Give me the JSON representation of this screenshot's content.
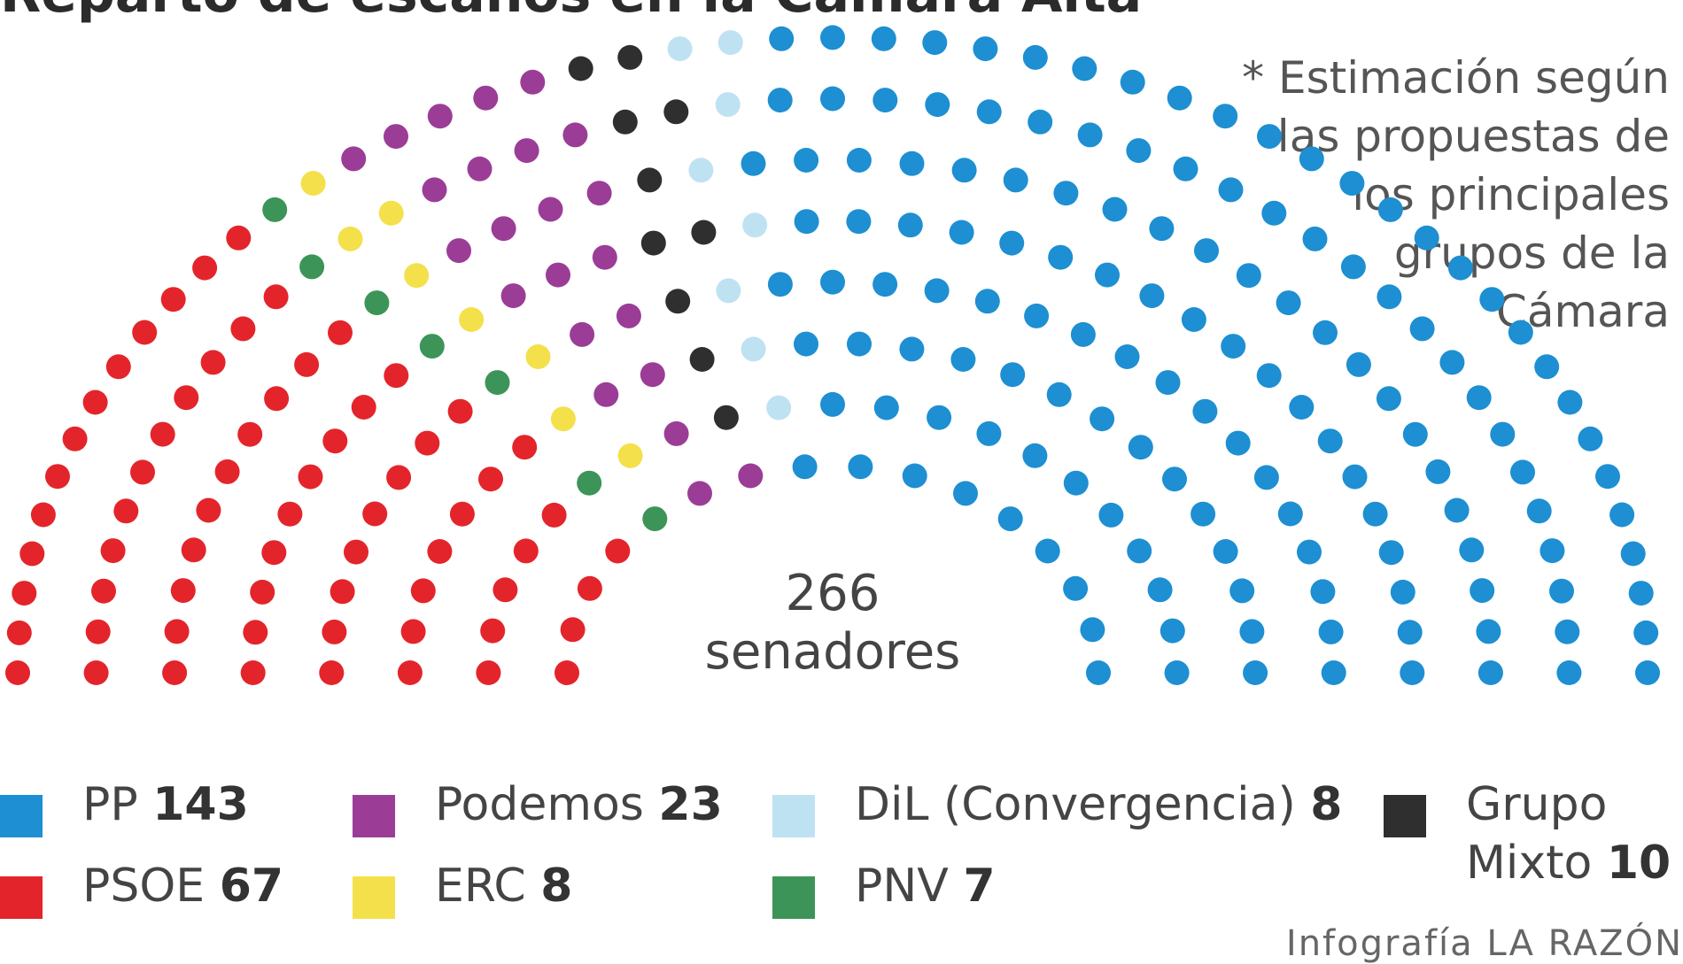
{
  "title": "Reparto de escaños en la Cámara Alta*",
  "footnote_lines": [
    "* Estimación según",
    "las propuestas de",
    "los principales",
    "grupos de la",
    "Cámara"
  ],
  "total": {
    "number": "266",
    "label": "senadores"
  },
  "credit": "Infografía LA RAZÓN",
  "legend": [
    {
      "name": "PP",
      "seats": "143",
      "color": "#1d8fd2"
    },
    {
      "name": "PSOE",
      "seats": "67",
      "color": "#e3252b"
    },
    {
      "name": "Podemos",
      "seats": "23",
      "color": "#9b3d96"
    },
    {
      "name": "ERC",
      "seats": "8",
      "color": "#f4e04a"
    },
    {
      "name": "DiL (Convergencia)",
      "seats": "8",
      "color": "#bfe2f2"
    },
    {
      "name": "PNV",
      "seats": "7",
      "color": "#3d9458"
    },
    {
      "name": "Grupo",
      "name2": "Mixto",
      "seats": "10",
      "color": "#2f2f2f"
    }
  ],
  "chart_data": {
    "type": "parliament",
    "total_seats": 266,
    "series": [
      {
        "name": "PSOE",
        "value": 67,
        "color": "#e3252b"
      },
      {
        "name": "PNV",
        "value": 7,
        "color": "#3d9458"
      },
      {
        "name": "ERC",
        "value": 8,
        "color": "#f4e04a"
      },
      {
        "name": "Podemos",
        "value": 23,
        "color": "#9b3d96"
      },
      {
        "name": "Grupo Mixto",
        "value": 10,
        "color": "#2f2f2f"
      },
      {
        "name": "DiL (Convergencia)",
        "value": 8,
        "color": "#bfe2f2"
      },
      {
        "name": "PP",
        "value": 143,
        "color": "#1d8fd2"
      }
    ]
  }
}
